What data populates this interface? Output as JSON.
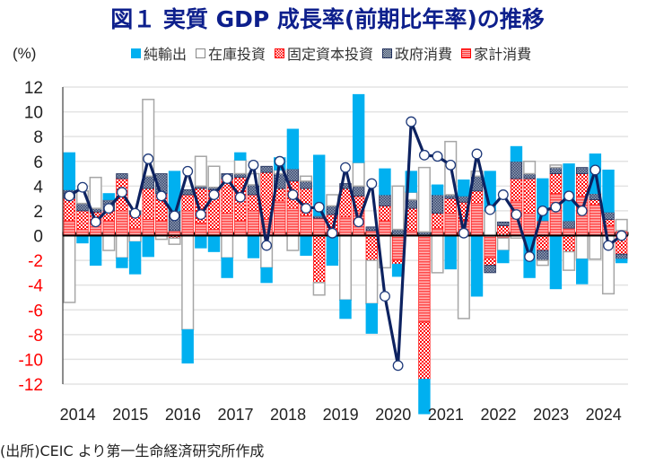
{
  "title": "図１ 実質 GDP 成長率(前期比年率)の推移",
  "unit_label": "(%)",
  "source": "(出所)CEIC より第一生命経済研究所作成",
  "colors": {
    "net_exports": "#00b0f0",
    "inventory": "#ffffff",
    "inventory_border": "#a6a6a6",
    "fixed_investment": "#ff0000",
    "government": "#44546a",
    "household": "#ff5b5b",
    "gdp_line": "#0d2260",
    "negative_tick": "#ff0000",
    "title": "#0d1f8c"
  },
  "legend": [
    {
      "key": "net_exports",
      "label": "純輸出"
    },
    {
      "key": "inventory",
      "label": "在庫投資"
    },
    {
      "key": "fixed_investment",
      "label": "固定資本投資"
    },
    {
      "key": "government",
      "label": "政府消費"
    },
    {
      "key": "household",
      "label": "家計消費"
    }
  ],
  "chart_data": {
    "type": "bar",
    "stacked": true,
    "title": "図１ 実質 GDP 成長率(前期比年率)の推移",
    "ylabel": "(%)",
    "xlabel": "",
    "ylim": [
      -12,
      12
    ],
    "yticks": [
      12,
      10,
      8,
      6,
      4,
      2,
      0,
      -2,
      -4,
      -6,
      -8,
      -10,
      -12
    ],
    "grid": true,
    "legend_position": "top",
    "year_labels": [
      "2014",
      "2015",
      "2016",
      "2017",
      "2018",
      "2019",
      "2020",
      "2021",
      "2022",
      "2023",
      "2024"
    ],
    "categories": [
      "2014Q1",
      "2014Q2",
      "2014Q3",
      "2014Q4",
      "2015Q1",
      "2015Q2",
      "2015Q3",
      "2015Q4",
      "2016Q1",
      "2016Q2",
      "2016Q3",
      "2016Q4",
      "2017Q1",
      "2017Q2",
      "2017Q3",
      "2017Q4",
      "2018Q1",
      "2018Q2",
      "2018Q3",
      "2018Q4",
      "2019Q1",
      "2019Q2",
      "2019Q3",
      "2019Q4",
      "2020Q1",
      "2020Q2",
      "2020Q3",
      "2020Q4",
      "2021Q1",
      "2021Q2",
      "2021Q3",
      "2021Q4",
      "2022Q1",
      "2022Q2",
      "2022Q3",
      "2022Q4",
      "2023Q1",
      "2023Q2",
      "2023Q3",
      "2023Q4",
      "2024Q1",
      "2024Q2",
      "2024Q3"
    ],
    "series": [
      {
        "name": "家計消費",
        "key": "household",
        "values": [
          1.2,
          0.5,
          1.0,
          1.2,
          2.0,
          0.6,
          1.3,
          1.2,
          0.4,
          2.0,
          1.0,
          0.5,
          1.8,
          1.2,
          2.0,
          1.3,
          2.8,
          2.2,
          1.6,
          1.4,
          0.5,
          1.5,
          2.0,
          0.4,
          1.2,
          -2.0,
          0.4,
          -7.0,
          0.6,
          1.8,
          1.2,
          2.6,
          -1.8,
          -0.2,
          2.8,
          1.8,
          1.2,
          3.4,
          0.6,
          3.2,
          2.5,
          0.8,
          0.4
        ]
      },
      {
        "name": "固定資本投資",
        "key": "fixed_investment",
        "values": [
          1.8,
          1.5,
          0.9,
          0.8,
          2.6,
          1.1,
          2.5,
          2.2,
          -0.2,
          1.3,
          2.8,
          3.2,
          2.8,
          3.5,
          1.3,
          3.8,
          1.0,
          2.2,
          2.2,
          -3.8,
          1.2,
          2.3,
          1.2,
          -2.0,
          1.2,
          -0.3,
          1.8,
          -4.6,
          1.2,
          1.2,
          1.5,
          1.0,
          -0.6,
          0.8,
          1.8,
          2.8,
          -1.2,
          1.6,
          -1.3,
          1.8,
          0.4,
          0.5,
          -1.5
        ]
      },
      {
        "name": "政府消費",
        "key": "government",
        "values": [
          0.7,
          0.6,
          0.3,
          0.9,
          0.4,
          0.3,
          1.0,
          1.6,
          1.6,
          0.4,
          0.2,
          0.2,
          0.4,
          0.3,
          0.8,
          0.5,
          1.2,
          1.0,
          0.6,
          0.2,
          0.7,
          0.4,
          0.8,
          0.3,
          0.9,
          0.5,
          0.7,
          0.3,
          1.5,
          0.3,
          0.5,
          1.2,
          -0.6,
          0.3,
          1.4,
          0.4,
          -0.8,
          0.5,
          0.6,
          0.5,
          0.5,
          0.6,
          -0.4
        ]
      },
      {
        "name": "在庫投資",
        "key": "inventory",
        "values": [
          -5.4,
          1.0,
          2.5,
          -1.2,
          -1.8,
          -0.5,
          6.2,
          -0.3,
          -0.5,
          -7.6,
          2.4,
          1.7,
          -1.8,
          1.1,
          0.9,
          -2.6,
          0.3,
          -1.2,
          0.4,
          -1.0,
          0.9,
          -5.2,
          1.9,
          -3.5,
          -2.6,
          3.5,
          0.6,
          5.2,
          -3.0,
          4.3,
          -6.7,
          0.4,
          2.0,
          -1.0,
          -0.2,
          1.0,
          -0.4,
          0.2,
          -1.5,
          -1.9,
          -1.9,
          -4.7,
          0.9
        ]
      },
      {
        "name": "純輸出",
        "key": "net_exports",
        "values": [
          3.0,
          -0.6,
          -2.4,
          0.5,
          -0.8,
          -2.6,
          -1.7,
          0.0,
          3.2,
          -2.7,
          -1.0,
          -1.3,
          -1.6,
          0.6,
          -1.8,
          -1.2,
          1.0,
          3.2,
          -1.6,
          4.9,
          -2.4,
          -1.5,
          5.5,
          -2.4,
          2.1,
          -1.0,
          1.7,
          -2.8,
          0.8,
          -2.7,
          1.3,
          -4.9,
          3.2,
          -1.0,
          1.2,
          -3.4,
          3.4,
          -4.3,
          4.6,
          -2.0,
          3.2,
          3.4,
          -0.3
        ]
      }
    ],
    "gdp_line": {
      "name": "実質GDP成長率",
      "values": [
        3.2,
        3.9,
        1.1,
        2.2,
        3.5,
        1.8,
        6.2,
        3.2,
        1.6,
        5.2,
        1.7,
        3.3,
        4.6,
        3.1,
        5.7,
        -0.8,
        6.0,
        3.3,
        2.2,
        2.3,
        0.2,
        5.5,
        1.1,
        4.2,
        -4.9,
        -10.5,
        9.2,
        6.5,
        6.4,
        5.7,
        0.2,
        6.6,
        2.1,
        3.3,
        1.7,
        -1.7,
        2.0,
        2.3,
        3.2,
        2.0,
        5.3,
        -0.8,
        0.0
      ]
    }
  }
}
